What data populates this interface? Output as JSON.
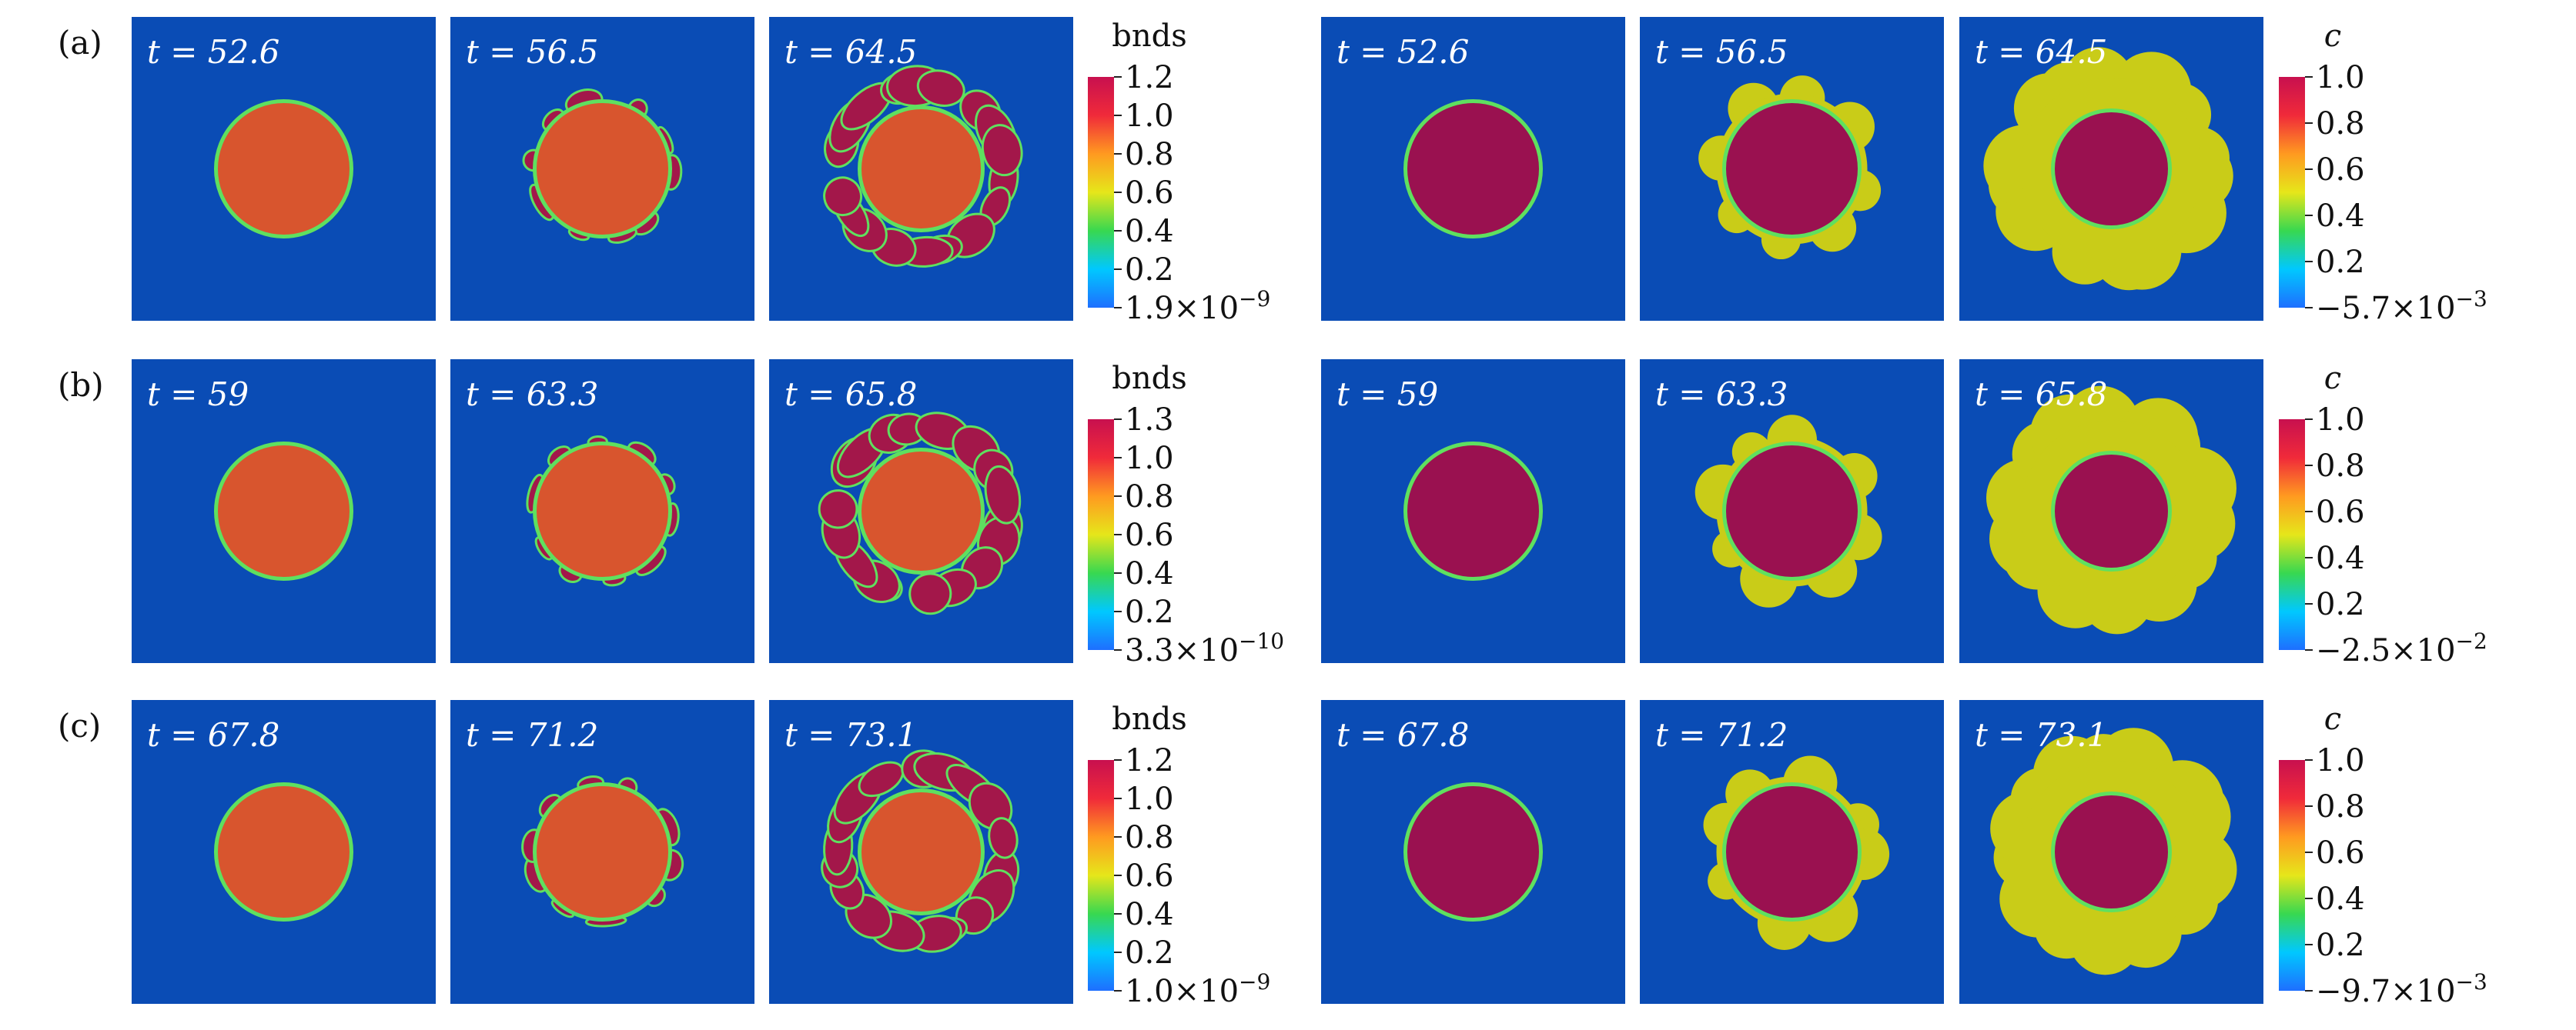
{
  "rows": [
    {
      "label": "(a)",
      "bnds_times": [
        "t = 52.6",
        "t = 56.5",
        "t = 64.5"
      ],
      "c_times": [
        "t = 52.6",
        "t = 56.5",
        "t = 64.5"
      ],
      "bnds_min": "1.9×10",
      "bnds_min_exp": "−9",
      "bnds_ticks": [
        "1.2",
        "1.0",
        "0.8",
        "0.6",
        "0.4",
        "0.2"
      ],
      "c_min": "−5.7×10",
      "c_min_exp": "−3",
      "c_ticks": [
        "1.0",
        "0.8",
        "0.6",
        "0.4",
        "0.2"
      ]
    },
    {
      "label": "(b)",
      "bnds_times": [
        "t = 59",
        "t = 63.3",
        "t = 65.8"
      ],
      "c_times": [
        "t = 59",
        "t = 63.3",
        "t = 65.8"
      ],
      "bnds_min": "3.3×10",
      "bnds_min_exp": "−10",
      "bnds_ticks": [
        "1.3",
        "1.0",
        "0.8",
        "0.6",
        "0.4",
        "0.2"
      ],
      "c_min": "−2.5×10",
      "c_min_exp": "−2",
      "c_ticks": [
        "1.0",
        "0.8",
        "0.6",
        "0.4",
        "0.2"
      ]
    },
    {
      "label": "(c)",
      "bnds_times": [
        "t = 67.8",
        "t = 71.2",
        "t = 73.1"
      ],
      "c_times": [
        "t = 67.8",
        "t = 71.2",
        "t = 73.1"
      ],
      "bnds_min": "1.0×10",
      "bnds_min_exp": "−9",
      "bnds_ticks": [
        "1.2",
        "1.0",
        "0.8",
        "0.6",
        "0.4",
        "0.2"
      ],
      "c_min": "−9.7×10",
      "c_min_exp": "−3",
      "c_ticks": [
        "1.0",
        "0.8",
        "0.6",
        "0.4",
        "0.2"
      ]
    }
  ],
  "bnds_title": "bnds",
  "c_title": "c",
  "colors": {
    "background": "#0a4cb5",
    "grain": "#d8552e",
    "new_grain": "#a3174a",
    "phase": "#9a1150",
    "shell": "#c9cc18",
    "rim": "#5fe05f"
  },
  "colormap": [
    "#1e6fff",
    "#00c8ff",
    "#38d850",
    "#e6e61a",
    "#ff9a20",
    "#f02a3a",
    "#c8104f"
  ]
}
